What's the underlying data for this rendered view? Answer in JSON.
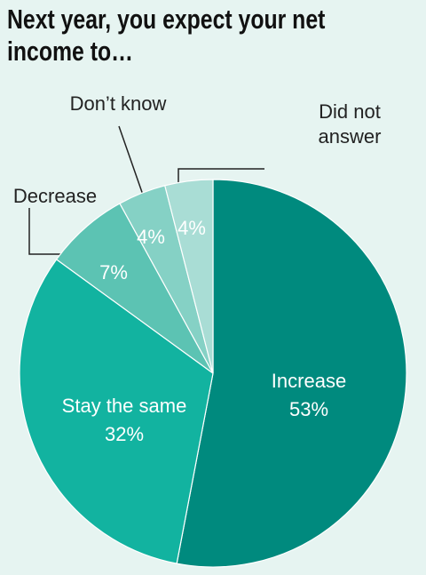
{
  "chart_data": {
    "type": "pie",
    "title": "Next year, you expect your net income to…",
    "categories": [
      "Increase",
      "Stay the same",
      "Decrease",
      "Don’t know",
      "Did not answer"
    ],
    "values": [
      53,
      32,
      7,
      4,
      4
    ],
    "value_labels": [
      "53%",
      "32%",
      "7%",
      "4%",
      "4%"
    ],
    "colors": [
      "#008a7e",
      "#12b3a0",
      "#5cc3b3",
      "#85d1c5",
      "#a9ddd5"
    ]
  }
}
